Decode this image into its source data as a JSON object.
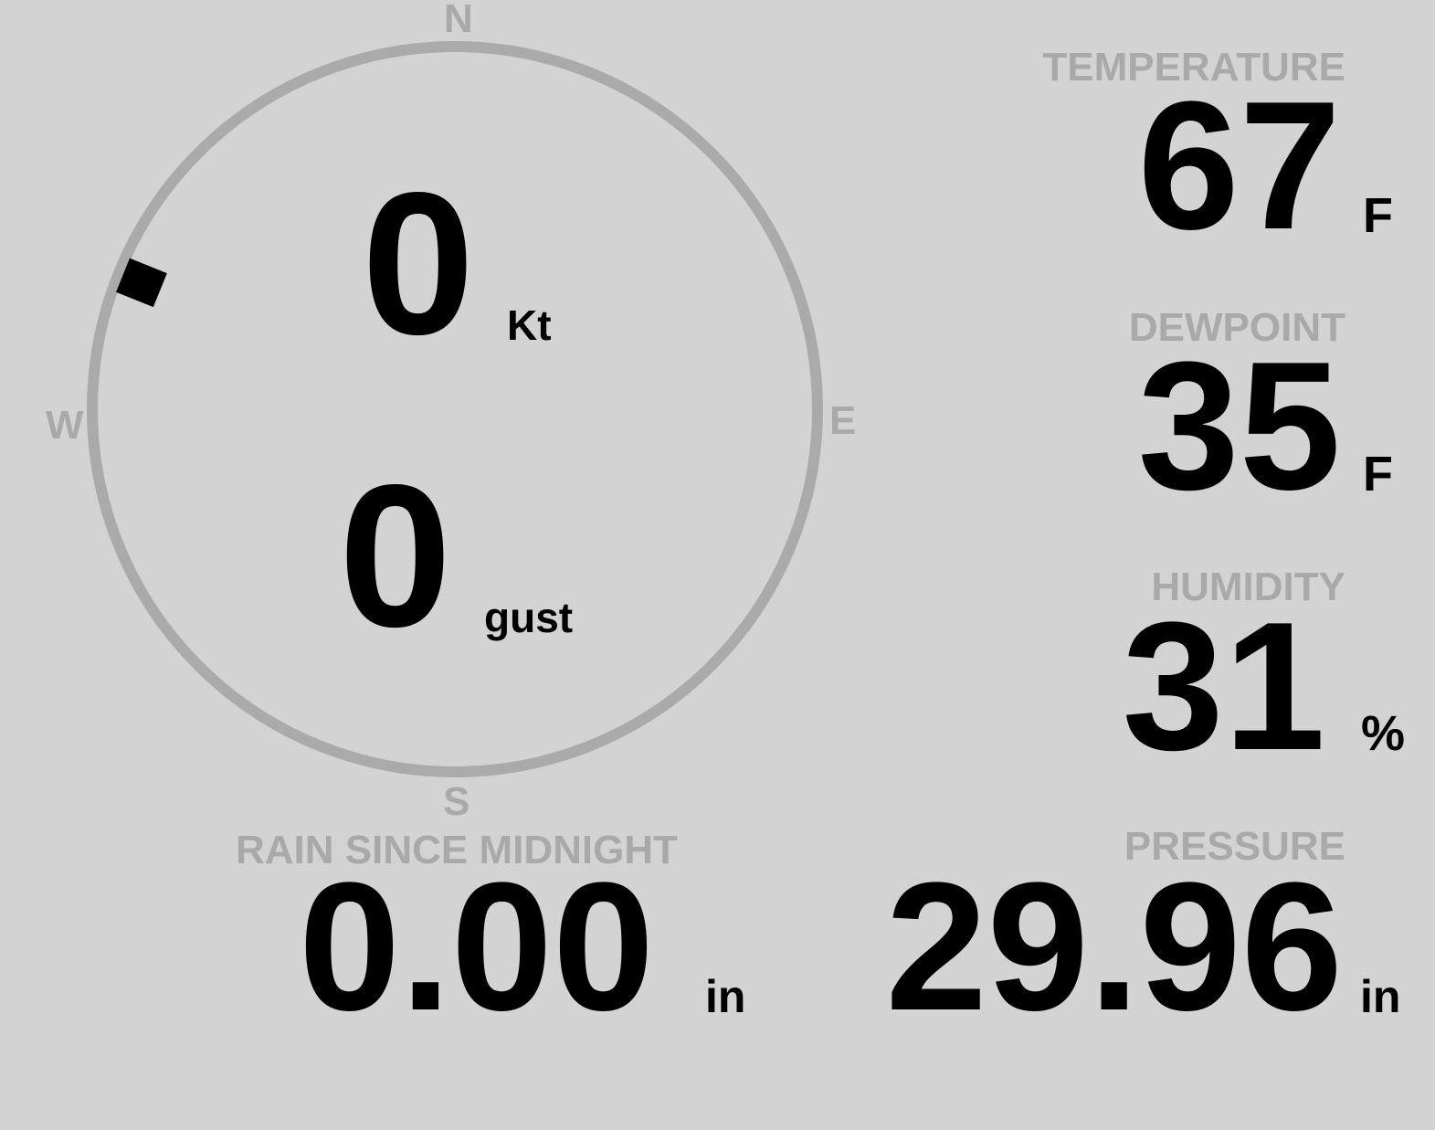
{
  "compass": {
    "north": "N",
    "south": "S",
    "east": "E",
    "west": "W",
    "wind_direction_deg": 292,
    "ring_color": "#aaaaaa",
    "marker_color": "#000000"
  },
  "wind": {
    "speed": "0",
    "speed_unit": "Kt",
    "gust": "0",
    "gust_unit": "gust"
  },
  "temperature": {
    "label": "TEMPERATURE",
    "value": "67",
    "unit": "F"
  },
  "dewpoint": {
    "label": "DEWPOINT",
    "value": "35",
    "unit": "F"
  },
  "humidity": {
    "label": "HUMIDITY",
    "value": "31",
    "unit": "%"
  },
  "rain": {
    "label": "RAIN SINCE MIDNIGHT",
    "value": "0.00",
    "unit": "in"
  },
  "pressure": {
    "label": "PRESSURE",
    "value": "29.96",
    "unit": "in"
  },
  "colors": {
    "background": "#d3d3d3",
    "label": "#a9a9a9",
    "value": "#000000"
  }
}
